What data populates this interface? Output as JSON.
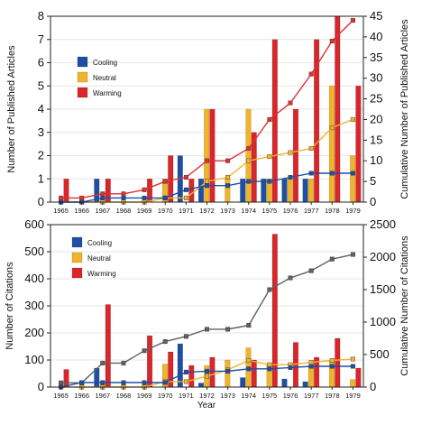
{
  "colors": {
    "cooling": "#1f4fa3",
    "neutral": "#f0b429",
    "warming": "#d8262b",
    "cum_warming": "#e0302f",
    "cum_neutral": "#f2b22e",
    "cum_cooling": "#1f4fa3",
    "cum_citations_line": "#606060"
  },
  "chart_data": [
    {
      "type": "bar",
      "categories": [
        "1965",
        "1966",
        "1967",
        "1968",
        "1969",
        "1970",
        "1971",
        "1972",
        "1973",
        "1974",
        "1975",
        "1976",
        "1977",
        "1978",
        "1979"
      ],
      "ylabel": "Number of Published Articles",
      "y2label": "Cumulative Number of Published Articles",
      "ylim": [
        0,
        8
      ],
      "y2lim": [
        0,
        45
      ],
      "yticks": [
        "0",
        "1",
        "2",
        "3",
        "4",
        "5",
        "6",
        "7",
        "8"
      ],
      "y2ticks": [
        "0",
        "5",
        "10",
        "15",
        "20",
        "25",
        "30",
        "35",
        "40",
        "45"
      ],
      "legend": {
        "position": "left",
        "entries": [
          "Cooling",
          "Neutral",
          "Warming"
        ]
      },
      "series": [
        {
          "name": "Cooling",
          "values": [
            0,
            0,
            1,
            0,
            0,
            0,
            2,
            1,
            0,
            1,
            1,
            1,
            1,
            0,
            0
          ]
        },
        {
          "name": "Neutral",
          "values": [
            0,
            0,
            0,
            0,
            0,
            1,
            0,
            4,
            1,
            4,
            1,
            1,
            1,
            5,
            2
          ]
        },
        {
          "name": "Warming",
          "values": [
            1,
            0,
            1,
            0,
            1,
            2,
            1,
            4,
            0,
            3,
            7,
            4,
            7,
            8,
            5
          ]
        }
      ],
      "cumulative": [
        {
          "name": "Warming",
          "values": [
            1,
            1,
            2,
            2,
            3,
            5,
            6,
            10,
            10,
            13,
            20,
            24,
            31,
            39,
            44
          ]
        },
        {
          "name": "Neutral",
          "values": [
            0,
            0,
            0,
            0,
            0,
            1,
            1,
            5,
            6,
            10,
            11,
            12,
            13,
            18,
            20
          ]
        },
        {
          "name": "Cooling",
          "values": [
            0,
            0,
            1,
            1,
            1,
            1,
            3,
            4,
            4,
            5,
            5,
            6,
            7,
            7,
            7
          ]
        }
      ]
    },
    {
      "type": "bar",
      "categories": [
        "1965",
        "1966",
        "1967",
        "1968",
        "1969",
        "1970",
        "1971",
        "1972",
        "1973",
        "1974",
        "1975",
        "1976",
        "1977",
        "1978",
        "1979"
      ],
      "xlabel": "Year",
      "ylabel": "Number of Citations",
      "y2label": "Cumulative Number of Citations",
      "ylim": [
        0,
        600
      ],
      "y2lim": [
        0,
        2500
      ],
      "yticks": [
        "0",
        "100",
        "200",
        "300",
        "400",
        "500",
        "600"
      ],
      "y2ticks": [
        "0",
        "500",
        "1000",
        "1500",
        "2000",
        "2500"
      ],
      "legend": {
        "position": "top-left",
        "entries": [
          "Cooling",
          "Neutral",
          "Warming"
        ]
      },
      "series": [
        {
          "name": "Cooling",
          "values": [
            0,
            0,
            70,
            0,
            0,
            0,
            160,
            15,
            0,
            35,
            0,
            30,
            20,
            0,
            0
          ]
        },
        {
          "name": "Neutral",
          "values": [
            0,
            0,
            0,
            0,
            0,
            85,
            0,
            80,
            100,
            145,
            85,
            0,
            80,
            100,
            28
          ]
        },
        {
          "name": "Warming",
          "values": [
            65,
            0,
            305,
            0,
            190,
            130,
            80,
            110,
            0,
            100,
            565,
            165,
            110,
            180,
            70
          ]
        }
      ],
      "cumulative": [
        {
          "name": "Total",
          "values": [
            65,
            65,
            370,
            370,
            560,
            700,
            780,
            890,
            890,
            950,
            1500,
            1680,
            1790,
            1970,
            2040
          ]
        },
        {
          "name": "Neutral",
          "values": [
            0,
            0,
            0,
            0,
            0,
            85,
            85,
            165,
            265,
            410,
            345,
            345,
            380,
            410,
            430
          ]
        },
        {
          "name": "Cooling",
          "values": [
            0,
            70,
            70,
            70,
            70,
            70,
            230,
            245,
            245,
            280,
            280,
            300,
            320,
            320,
            320
          ]
        }
      ]
    }
  ]
}
